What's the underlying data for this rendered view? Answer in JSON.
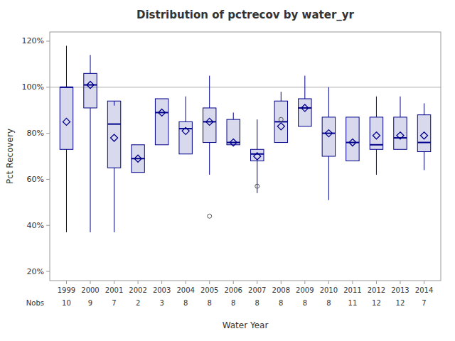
{
  "chart_data": {
    "type": "box",
    "title": "Distribution of pctrecov by water_yr",
    "x_label": "Water Year",
    "y_label": "Pct Recovery",
    "categories": [
      1999,
      2000,
      2001,
      2002,
      2003,
      2004,
      2005,
      2006,
      2007,
      2008,
      2009,
      2010,
      2011,
      2012,
      2013,
      2014
    ],
    "boxes": [
      {
        "q1": 73,
        "median": 100,
        "q3": 100,
        "whisker_lo": 37,
        "whisker_hi": 118,
        "mean": 85,
        "outliers": []
      },
      {
        "q1": 91,
        "median": 101,
        "q3": 106,
        "whisker_lo": 37,
        "whisker_hi": 114,
        "mean": 101,
        "outliers": []
      },
      {
        "q1": 65,
        "median": 84,
        "q3": 94,
        "whisker_lo": 37,
        "whisker_hi": 92,
        "mean": 78,
        "outliers": []
      },
      {
        "q1": 63,
        "median": 69,
        "q3": 75,
        "whisker_lo": 63,
        "whisker_hi": 75,
        "mean": 69,
        "outliers": []
      },
      {
        "q1": 75,
        "median": 89,
        "q3": 95,
        "whisker_lo": 75,
        "whisker_hi": 95,
        "mean": 89,
        "outliers": []
      },
      {
        "q1": 71,
        "median": 82,
        "q3": 85,
        "whisker_lo": 71,
        "whisker_hi": 96,
        "mean": 81,
        "outliers": []
      },
      {
        "q1": 76,
        "median": 85,
        "q3": 91,
        "whisker_lo": 62,
        "whisker_hi": 105,
        "mean": 85,
        "outliers": [
          44
        ]
      },
      {
        "q1": 75,
        "median": 76,
        "q3": 86,
        "whisker_lo": 75,
        "whisker_hi": 89,
        "mean": 76,
        "outliers": []
      },
      {
        "q1": 68,
        "median": 71,
        "q3": 73,
        "whisker_lo": 54,
        "whisker_hi": 86,
        "mean": 70,
        "outliers": [
          57
        ]
      },
      {
        "q1": 76,
        "median": 85,
        "q3": 94,
        "whisker_lo": 76,
        "whisker_hi": 98,
        "mean": 83,
        "outliers": [
          86
        ]
      },
      {
        "q1": 83,
        "median": 91,
        "q3": 95,
        "whisker_lo": 83,
        "whisker_hi": 105,
        "mean": 91,
        "outliers": []
      },
      {
        "q1": 70,
        "median": 80,
        "q3": 87,
        "whisker_lo": 51,
        "whisker_hi": 100,
        "mean": 80,
        "outliers": []
      },
      {
        "q1": 68,
        "median": 76,
        "q3": 87,
        "whisker_lo": 68,
        "whisker_hi": 87,
        "mean": 76,
        "outliers": []
      },
      {
        "q1": 73,
        "median": 75,
        "q3": 87,
        "whisker_lo": 62,
        "whisker_hi": 96,
        "mean": 79,
        "outliers": []
      },
      {
        "q1": 73,
        "median": 78,
        "q3": 87,
        "whisker_lo": 73,
        "whisker_hi": 96,
        "mean": 79,
        "outliers": []
      },
      {
        "q1": 72,
        "median": 76,
        "q3": 88,
        "whisker_lo": 64,
        "whisker_hi": 93,
        "mean": 79,
        "outliers": []
      }
    ],
    "nobs_label": "Nobs",
    "nobs": [
      10,
      9,
      7,
      2,
      3,
      8,
      8,
      8,
      8,
      8,
      8,
      8,
      11,
      12,
      12,
      7
    ],
    "reference_line": 100,
    "color": "#00008b",
    "ylim": [
      16,
      124
    ],
    "yticks": [
      {
        "value": 20,
        "label": "20%"
      },
      {
        "value": 40,
        "label": "40%"
      },
      {
        "value": 60,
        "label": "60%"
      },
      {
        "value": 80,
        "label": "80%"
      },
      {
        "value": 100,
        "label": "100%"
      },
      {
        "value": 120,
        "label": "120%"
      }
    ],
    "grid": false
  }
}
